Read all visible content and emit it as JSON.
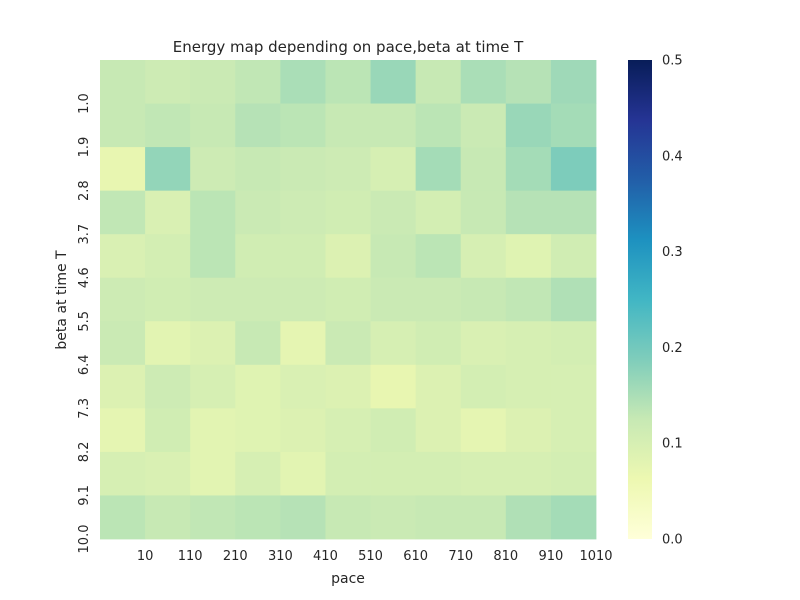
{
  "chart_data": {
    "type": "heatmap",
    "title": "Energy map depending on pace,beta at time T",
    "xlabel": "pace",
    "ylabel": "beta at time T",
    "x_tick_labels": [
      "10",
      "110",
      "210",
      "310",
      "410",
      "510",
      "610",
      "710",
      "810",
      "910",
      "1010"
    ],
    "y_tick_labels": [
      "1.0",
      "1.9",
      "2.8",
      "3.7",
      "4.6",
      "5.5",
      "6.4",
      "7.3",
      "8.2",
      "9.1",
      "10.0"
    ],
    "grid": false,
    "colormap": "YlGnBu",
    "colorbar": {
      "min": 0.0,
      "max": 0.5,
      "ticks": [
        "0.0",
        "0.1",
        "0.2",
        "0.3",
        "0.4",
        "0.5"
      ]
    },
    "values": [
      [
        0.125,
        0.115,
        0.12,
        0.13,
        0.15,
        0.135,
        0.165,
        0.125,
        0.15,
        0.14,
        0.16
      ],
      [
        0.125,
        0.13,
        0.125,
        0.14,
        0.135,
        0.125,
        0.125,
        0.135,
        0.12,
        0.165,
        0.155
      ],
      [
        0.07,
        0.17,
        0.115,
        0.125,
        0.12,
        0.115,
        0.1,
        0.155,
        0.125,
        0.155,
        0.19
      ],
      [
        0.13,
        0.095,
        0.135,
        0.12,
        0.115,
        0.11,
        0.12,
        0.105,
        0.125,
        0.14,
        0.14
      ],
      [
        0.095,
        0.105,
        0.135,
        0.11,
        0.11,
        0.09,
        0.125,
        0.135,
        0.1,
        0.085,
        0.11
      ],
      [
        0.115,
        0.11,
        0.115,
        0.115,
        0.115,
        0.11,
        0.12,
        0.12,
        0.125,
        0.13,
        0.145
      ],
      [
        0.12,
        0.08,
        0.09,
        0.125,
        0.075,
        0.12,
        0.1,
        0.11,
        0.095,
        0.1,
        0.105
      ],
      [
        0.09,
        0.115,
        0.1,
        0.085,
        0.095,
        0.09,
        0.07,
        0.09,
        0.105,
        0.1,
        0.1
      ],
      [
        0.075,
        0.11,
        0.08,
        0.085,
        0.09,
        0.1,
        0.11,
        0.09,
        0.075,
        0.09,
        0.1
      ],
      [
        0.1,
        0.095,
        0.08,
        0.1,
        0.08,
        0.105,
        0.105,
        0.105,
        0.1,
        0.1,
        0.105
      ],
      [
        0.135,
        0.125,
        0.13,
        0.135,
        0.14,
        0.125,
        0.12,
        0.125,
        0.125,
        0.145,
        0.155
      ]
    ]
  }
}
